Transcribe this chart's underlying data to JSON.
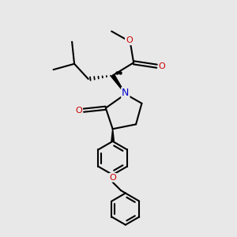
{
  "bg_color": "#e8e8e8",
  "bond_color": "#000000",
  "bond_width": 1.5,
  "N_color": "#0000cc",
  "O_color": "#cc0000",
  "font_size": 8.0,
  "fig_width": 3.0,
  "fig_height": 3.0,
  "dpi": 100,
  "xlim": [
    0,
    10
  ],
  "ylim": [
    0,
    10
  ]
}
